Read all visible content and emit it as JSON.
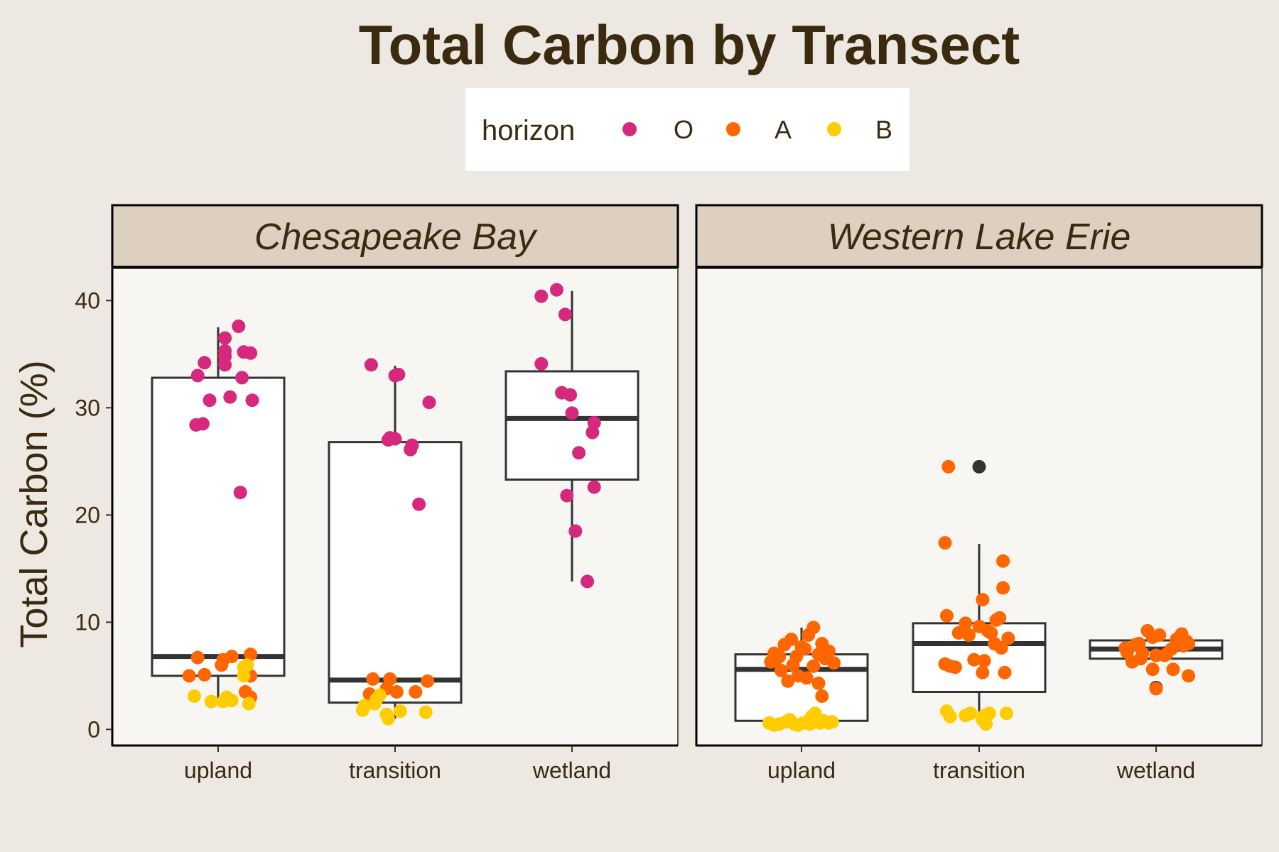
{
  "chart_data": {
    "type": "box",
    "title": "Total Carbon by Transect",
    "ylabel": "Total Carbon (%)",
    "xlabel": "",
    "ylim": [
      -1.5,
      43
    ],
    "yticks": [
      0,
      10,
      20,
      30,
      40
    ],
    "categories": [
      "upland",
      "transition",
      "wetland"
    ],
    "legend": {
      "title": "horizon",
      "placement": "top",
      "items": [
        {
          "label": "O",
          "color": "#d6297e"
        },
        {
          "label": "A",
          "color": "#ff6600"
        },
        {
          "label": "B",
          "color": "#ffcc00"
        }
      ]
    },
    "facets": [
      {
        "name": "Chesapeake Bay",
        "boxes": [
          {
            "category": "upland",
            "whisker_low": 2.5,
            "q1": 5.0,
            "median": 6.8,
            "q3": 32.8,
            "whisker_high": 37.5,
            "outliers": []
          },
          {
            "category": "transition",
            "whisker_low": 1.0,
            "q1": 2.5,
            "median": 4.6,
            "q3": 26.8,
            "whisker_high": 33.9,
            "outliers": []
          },
          {
            "category": "wetland",
            "whisker_low": 13.8,
            "q1": 23.3,
            "median": 29.0,
            "q3": 33.4,
            "whisker_high": 40.9,
            "outliers": []
          }
        ],
        "points": {
          "upland": {
            "O": [
              [
                -0.12,
                33.0
              ],
              [
                -0.08,
                34.2
              ],
              [
                0.04,
                34.0
              ],
              [
                0.04,
                34.8
              ],
              [
                0.04,
                35.3
              ],
              [
                0.04,
                36.5
              ],
              [
                0.12,
                37.6
              ],
              [
                0.15,
                35.2
              ],
              [
                0.19,
                35.1
              ],
              [
                0.14,
                32.8
              ],
              [
                0.07,
                31.0
              ],
              [
                -0.05,
                30.7
              ],
              [
                0.2,
                30.7
              ],
              [
                -0.13,
                28.4
              ],
              [
                -0.09,
                28.5
              ],
              [
                0.13,
                22.1
              ]
            ],
            "A": [
              [
                -0.12,
                6.7
              ],
              [
                0.03,
                6.5
              ],
              [
                0.08,
                6.8
              ],
              [
                0.19,
                7.0
              ],
              [
                0.02,
                6.0
              ],
              [
                -0.17,
                5.0
              ],
              [
                -0.08,
                5.1
              ],
              [
                0.19,
                5.0
              ],
              [
                0.16,
                3.5
              ],
              [
                0.19,
                3.0
              ]
            ],
            "B": [
              [
                -0.14,
                3.1
              ],
              [
                -0.04,
                2.6
              ],
              [
                0.03,
                2.6
              ],
              [
                0.05,
                3.0
              ],
              [
                0.08,
                2.7
              ],
              [
                0.18,
                2.4
              ],
              [
                0.15,
                5.0
              ],
              [
                0.15,
                5.8
              ],
              [
                0.17,
                6.0
              ]
            ]
          },
          "transition": {
            "O": [
              [
                -0.14,
                34.0
              ],
              [
                0.0,
                33.0
              ],
              [
                0.02,
                33.1
              ],
              [
                0.2,
                30.5
              ],
              [
                -0.04,
                27.0
              ],
              [
                -0.03,
                27.2
              ],
              [
                0.0,
                27.1
              ],
              [
                0.1,
                26.5
              ],
              [
                0.09,
                26.1
              ],
              [
                0.14,
                21.0
              ]
            ],
            "A": [
              [
                -0.13,
                4.7
              ],
              [
                -0.05,
                3.8
              ],
              [
                -0.03,
                4.7
              ],
              [
                0.01,
                3.5
              ],
              [
                0.12,
                3.5
              ],
              [
                0.19,
                4.5
              ],
              [
                -0.15,
                3.3
              ]
            ],
            "B": [
              [
                -0.19,
                1.8
              ],
              [
                -0.18,
                2.2
              ],
              [
                -0.12,
                2.4
              ],
              [
                -0.11,
                2.8
              ],
              [
                -0.09,
                3.2
              ],
              [
                -0.05,
                1.4
              ],
              [
                -0.04,
                1.0
              ],
              [
                0.03,
                1.7
              ],
              [
                0.18,
                1.6
              ]
            ]
          },
          "wetland": {
            "O": [
              [
                -0.18,
                40.4
              ],
              [
                -0.09,
                41.0
              ],
              [
                -0.04,
                38.7
              ],
              [
                -0.18,
                34.1
              ],
              [
                -0.06,
                31.4
              ],
              [
                -0.01,
                31.2
              ],
              [
                0.0,
                29.5
              ],
              [
                0.13,
                28.6
              ],
              [
                0.12,
                27.7
              ],
              [
                0.04,
                25.8
              ],
              [
                -0.03,
                21.8
              ],
              [
                0.13,
                22.6
              ],
              [
                0.02,
                18.5
              ],
              [
                0.09,
                13.8
              ]
            ],
            "A": [],
            "B": []
          }
        }
      },
      {
        "name": "Western Lake Erie",
        "boxes": [
          {
            "category": "upland",
            "whisker_low": 0.8,
            "q1": 0.8,
            "median": 5.6,
            "q3": 7.0,
            "whisker_high": 9.5,
            "outliers": []
          },
          {
            "category": "transition",
            "whisker_low": 1.5,
            "q1": 3.5,
            "median": 8.0,
            "q3": 9.9,
            "whisker_high": 17.3,
            "outliers": [
              24.5
            ]
          },
          {
            "category": "wetland",
            "whisker_low": 6.5,
            "q1": 6.6,
            "median": 7.5,
            "q3": 8.3,
            "whisker_high": 8.9,
            "outliers": [
              3.9
            ]
          }
        ],
        "points": {
          "upland": {
            "O": [],
            "A": [
              [
                -0.18,
                6.3
              ],
              [
                -0.16,
                7.1
              ],
              [
                -0.13,
                6.8
              ],
              [
                -0.1,
                7.9
              ],
              [
                -0.06,
                8.4
              ],
              [
                -0.05,
                6.0
              ],
              [
                -0.02,
                5.0
              ],
              [
                0.02,
                7.5
              ],
              [
                0.04,
                8.8
              ],
              [
                0.07,
                9.5
              ],
              [
                0.1,
                7.0
              ],
              [
                0.12,
                8.0
              ],
              [
                0.16,
                7.3
              ],
              [
                0.19,
                6.2
              ],
              [
                -0.12,
                5.5
              ],
              [
                -0.08,
                4.5
              ],
              [
                0.03,
                4.8
              ],
              [
                0.1,
                4.3
              ],
              [
                0.12,
                3.1
              ],
              [
                0.0,
                7.7
              ],
              [
                -0.03,
                6.8
              ],
              [
                0.07,
                5.9
              ],
              [
                -0.15,
                6.5
              ],
              [
                0.14,
                6.6
              ]
            ],
            "B": [
              [
                -0.19,
                0.6
              ],
              [
                -0.16,
                0.4
              ],
              [
                -0.13,
                0.5
              ],
              [
                -0.09,
                0.7
              ],
              [
                -0.07,
                0.9
              ],
              [
                -0.04,
                0.5
              ],
              [
                -0.02,
                0.4
              ],
              [
                0.01,
                0.6
              ],
              [
                0.04,
                0.8
              ],
              [
                0.06,
                1.2
              ],
              [
                0.08,
                1.5
              ],
              [
                0.09,
                0.9
              ],
              [
                0.11,
                0.6
              ],
              [
                0.13,
                0.8
              ],
              [
                0.16,
                0.6
              ],
              [
                0.18,
                0.7
              ],
              [
                0.05,
                0.5
              ]
            ]
          },
          "transition": {
            "O": [],
            "A": [
              [
                -0.18,
                24.5
              ],
              [
                -0.2,
                17.4
              ],
              [
                0.02,
                12.1
              ],
              [
                0.14,
                15.7
              ],
              [
                0.14,
                13.2
              ],
              [
                -0.19,
                10.6
              ],
              [
                -0.08,
                9.9
              ],
              [
                0.0,
                9.6
              ],
              [
                0.05,
                9.2
              ],
              [
                0.1,
                10.2
              ],
              [
                0.12,
                10.4
              ],
              [
                -0.12,
                9.0
              ],
              [
                -0.06,
                8.8
              ],
              [
                0.07,
                9.0
              ],
              [
                0.17,
                8.5
              ],
              [
                0.09,
                8.0
              ],
              [
                -0.03,
                6.5
              ],
              [
                0.03,
                6.4
              ],
              [
                -0.2,
                6.1
              ],
              [
                -0.17,
                5.9
              ],
              [
                -0.14,
                5.8
              ],
              [
                0.02,
                5.3
              ],
              [
                0.15,
                5.3
              ],
              [
                0.13,
                7.6
              ]
            ],
            "B": [
              [
                -0.19,
                1.7
              ],
              [
                -0.17,
                1.2
              ],
              [
                -0.08,
                1.3
              ],
              [
                -0.05,
                1.5
              ],
              [
                0.02,
                0.9
              ],
              [
                0.03,
                1.3
              ],
              [
                0.04,
                0.5
              ],
              [
                0.06,
                1.5
              ],
              [
                0.16,
                1.5
              ]
            ]
          },
          "wetland": {
            "O": [],
            "A": [
              [
                -0.17,
                7.2
              ],
              [
                -0.12,
                7.9
              ],
              [
                -0.08,
                7.1
              ],
              [
                -0.05,
                9.2
              ],
              [
                -0.02,
                8.6
              ],
              [
                0.02,
                8.8
              ],
              [
                0.05,
                6.9
              ],
              [
                0.09,
                7.5
              ],
              [
                0.12,
                8.4
              ],
              [
                0.15,
                8.9
              ],
              [
                0.18,
                8.2
              ],
              [
                -0.14,
                6.3
              ],
              [
                -0.09,
                6.6
              ],
              [
                0.0,
                6.9
              ],
              [
                0.06,
                7.0
              ],
              [
                0.16,
                7.8
              ],
              [
                0.19,
                8.0
              ],
              [
                -0.18,
                7.6
              ],
              [
                0.1,
                5.6
              ],
              [
                0.19,
                5.0
              ],
              [
                -0.02,
                5.6
              ],
              [
                0.0,
                3.8
              ],
              [
                -0.1,
                8.0
              ]
            ],
            "B": []
          }
        }
      }
    ]
  }
}
